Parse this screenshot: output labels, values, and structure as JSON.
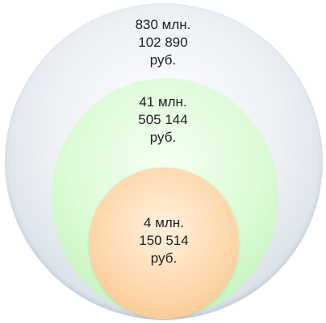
{
  "diagram": {
    "levels": [
      {
        "line1": "830 млн.",
        "line2": "102 890",
        "line3": "руб.",
        "color": "#dbe2ea"
      },
      {
        "line1": "41 млн.",
        "line2": "505 144",
        "line3": "руб.",
        "color": "#c9f5c1"
      },
      {
        "line1": "4 млн.",
        "line2": "150 514",
        "line3": "руб.",
        "color": "#fcd2a2"
      }
    ]
  }
}
